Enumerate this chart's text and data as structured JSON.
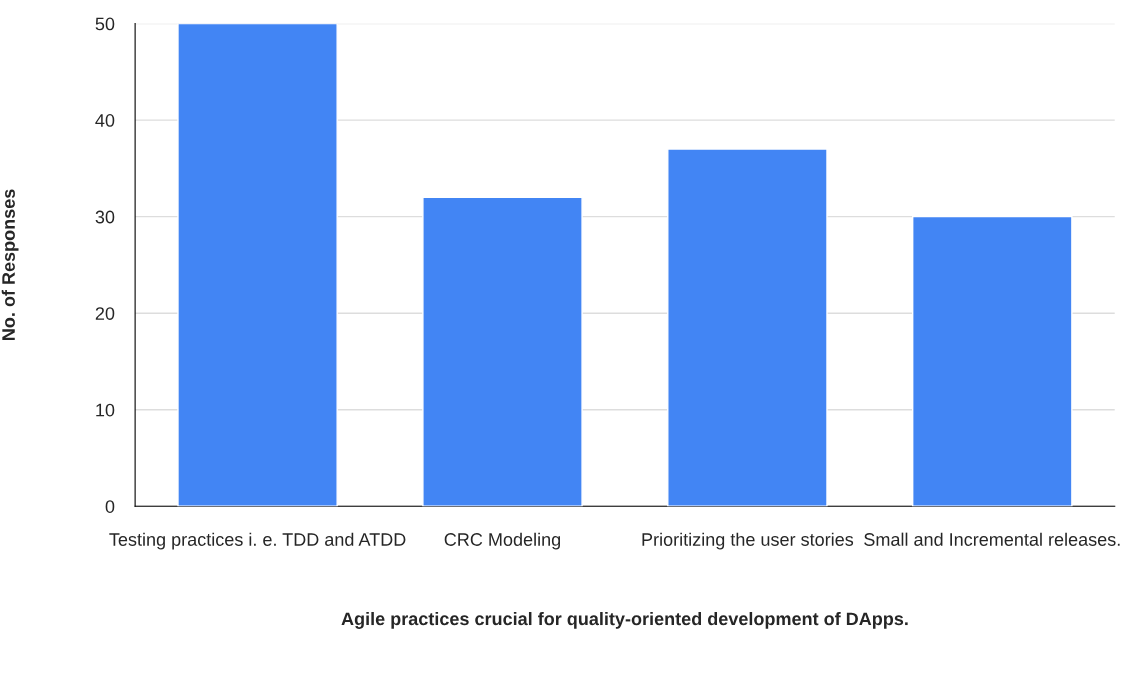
{
  "chart_data": {
    "type": "bar",
    "categories": [
      "Testing practices i. e. TDD and ATDD",
      "CRC Modeling",
      "Prioritizing the user stories",
      "Small and Incremental releases."
    ],
    "values": [
      50,
      32,
      37,
      30
    ],
    "color": "#4285f4",
    "xlabel": "Agile practices crucial for quality-oriented development of DApps.",
    "ylabel": "No. of Responses",
    "ylim": [
      0,
      50
    ],
    "yticks": [
      0,
      10,
      20,
      30,
      40,
      50
    ],
    "grid": "y",
    "legend": false
  }
}
